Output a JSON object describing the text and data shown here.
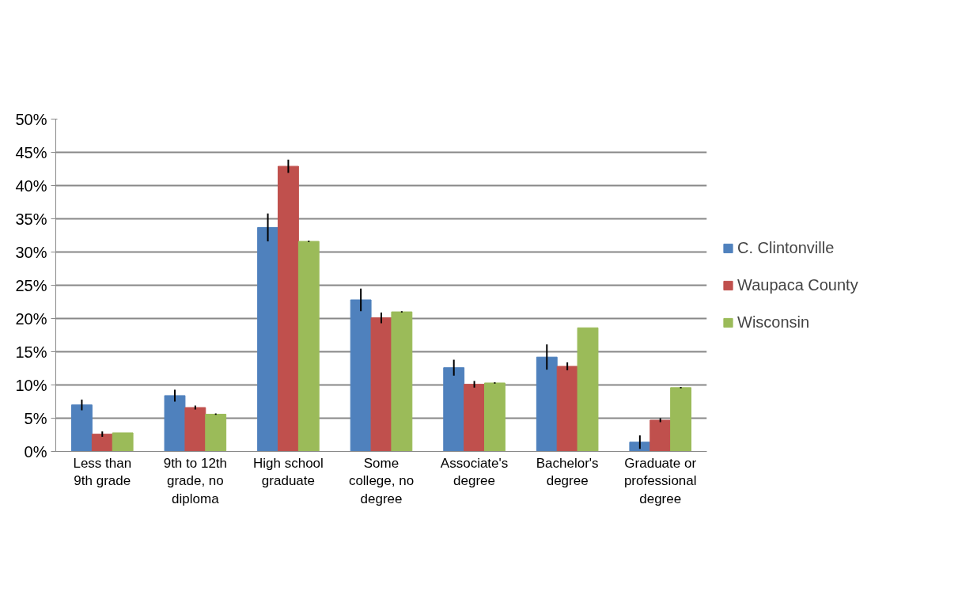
{
  "chart_data": {
    "type": "bar",
    "categories": [
      "Less than 9th grade",
      "9th to 12th grade, no diploma",
      "High school graduate",
      "Some college, no degree",
      "Associate's degree",
      "Bachelor's degree",
      "Graduate or professional degree"
    ],
    "series": [
      {
        "name": "C. Clintonville",
        "color": "#4f81bd",
        "values": [
          7.0,
          8.4,
          33.7,
          22.8,
          12.6,
          14.2,
          1.4
        ],
        "errors": [
          0.8,
          0.9,
          2.1,
          1.7,
          1.2,
          1.9,
          1.0
        ]
      },
      {
        "name": "Waupaca County",
        "color": "#c0504d",
        "values": [
          2.6,
          6.6,
          42.9,
          20.1,
          10.1,
          12.8,
          4.7
        ],
        "errors": [
          0.4,
          0.3,
          1.0,
          0.8,
          0.5,
          0.6,
          0.3
        ]
      },
      {
        "name": "Wisconsin",
        "color": "#9bbb59",
        "values": [
          2.8,
          5.6,
          31.6,
          21.0,
          10.3,
          18.6,
          9.6
        ],
        "errors": [
          null,
          0.1,
          0.1,
          0.1,
          0.1,
          null,
          0.1
        ]
      }
    ],
    "ylim": [
      0,
      50
    ],
    "yticks": [
      {
        "value": 0,
        "label": "0%"
      },
      {
        "value": 5,
        "label": "5%"
      },
      {
        "value": 10,
        "label": "10%"
      },
      {
        "value": 15,
        "label": "15%"
      },
      {
        "value": 20,
        "label": "20%"
      },
      {
        "value": 25,
        "label": "25%"
      },
      {
        "value": 30,
        "label": "30%"
      },
      {
        "value": 35,
        "label": "35%"
      },
      {
        "value": 40,
        "label": "40%"
      },
      {
        "value": 45,
        "label": "45%"
      },
      {
        "value": 50,
        "label": "50%"
      }
    ],
    "grid": "y",
    "legend": "right"
  }
}
